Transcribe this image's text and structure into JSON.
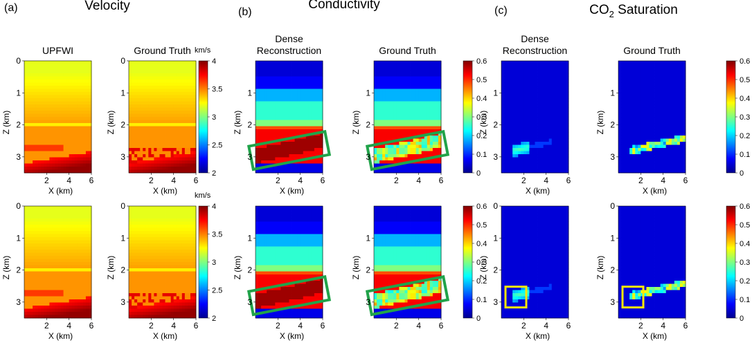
{
  "panels": [
    {
      "letter": "(a)",
      "title": "Velocity"
    },
    {
      "letter": "(b)",
      "title": "Conductivity"
    },
    {
      "letter": "(c)",
      "title_main": "CO",
      "title_sub": "2",
      "title_rest": " Saturation"
    }
  ],
  "colorbar_colors": [
    "#00008f",
    "#0000ff",
    "#0080ff",
    "#00ffff",
    "#80ff80",
    "#ffff00",
    "#ff8000",
    "#ff0000",
    "#800000"
  ],
  "highlight_colors": {
    "green": "#21a34a",
    "yellow": "#ffe600"
  },
  "chart_data": [
    {
      "type": "heatmap",
      "panel": "(a)",
      "row": 1,
      "title": "UPFWI",
      "xlabel": "X (km)",
      "ylabel": "Z (km)",
      "xticks": [
        "2",
        "4",
        "6"
      ],
      "yticks": [
        "0",
        "1",
        "2",
        "3"
      ],
      "xlim": [
        0,
        6
      ],
      "ylim": [
        0,
        3.5
      ],
      "colorbar_unit": "",
      "colorbar_ticks": [],
      "crange": [
        1.9,
        4
      ],
      "field": "velocity",
      "highlight": "none"
    },
    {
      "type": "heatmap",
      "panel": "(a)",
      "row": 1,
      "title": "Ground Truth",
      "xlabel": "X (km)",
      "ylabel": "Z (km)",
      "xticks": [
        "2",
        "4",
        "6"
      ],
      "yticks": [
        "0",
        "1",
        "2",
        "3"
      ],
      "xlim": [
        0,
        6
      ],
      "ylim": [
        0,
        3.5
      ],
      "colorbar_unit": "km/s",
      "colorbar_ticks": [
        "4",
        "3.5",
        "3",
        "2.5",
        "2"
      ],
      "crange": [
        1.9,
        4
      ],
      "field": "velocity_gt",
      "highlight": "none"
    },
    {
      "type": "heatmap",
      "panel": "(b)",
      "row": 1,
      "title": "Dense\nReconstruction",
      "xlabel": "X (km)",
      "ylabel": "Z (km)",
      "xticks": [
        "2",
        "4",
        "6"
      ],
      "yticks": [
        "1",
        "2",
        "3"
      ],
      "xlim": [
        0,
        6
      ],
      "ylim": [
        0,
        3.5
      ],
      "colorbar_unit": "",
      "colorbar_ticks": [],
      "crange": [
        0,
        0.6
      ],
      "field": "conductivity",
      "highlight": "green"
    },
    {
      "type": "heatmap",
      "panel": "(b)",
      "row": 1,
      "title": "Ground Truth",
      "xlabel": "",
      "ylabel": "Z (km)",
      "xticks": [
        "2",
        "4",
        "6"
      ],
      "yticks": [
        "1",
        "2",
        "3"
      ],
      "xlim": [
        0,
        6
      ],
      "ylim": [
        0,
        3.5
      ],
      "colorbar_unit": "",
      "colorbar_ticks": [
        "0.6",
        "0.5",
        "0.4",
        "0.3",
        "0.2",
        "0.1",
        "0"
      ],
      "crange": [
        0,
        0.6
      ],
      "field": "conductivity_gt",
      "highlight": "green"
    },
    {
      "type": "heatmap",
      "panel": "(c)",
      "row": 1,
      "title": "Dense\nReconstruction",
      "xlabel": "X (km)",
      "ylabel": "Z (km)",
      "xticks": [
        "2",
        "4",
        "6"
      ],
      "yticks": [
        "1",
        "2",
        "3"
      ],
      "xlim": [
        0,
        6
      ],
      "ylim": [
        0,
        3.5
      ],
      "colorbar_unit": "",
      "colorbar_ticks": [],
      "crange": [
        0,
        0.6
      ],
      "field": "saturation",
      "highlight": "none"
    },
    {
      "type": "heatmap",
      "panel": "(c)",
      "row": 1,
      "title": "Ground Truth",
      "xlabel": "X (km)",
      "ylabel": "Z (km)",
      "xticks": [
        "2",
        "4",
        "6"
      ],
      "yticks": [
        "1",
        "2",
        "3"
      ],
      "xlim": [
        0,
        6
      ],
      "ylim": [
        0,
        3.5
      ],
      "colorbar_unit": "",
      "colorbar_ticks": [
        "0.6",
        "0.5",
        "0.4",
        "0.3",
        "0.2",
        "0.1",
        "0"
      ],
      "crange": [
        0,
        0.6
      ],
      "field": "saturation_gt",
      "highlight": "none"
    },
    {
      "type": "heatmap",
      "panel": "(a)",
      "row": 2,
      "title": "",
      "xlabel": "X (km)",
      "ylabel": "Z (km)",
      "xticks": [
        "2",
        "4",
        "6"
      ],
      "yticks": [
        "0",
        "1",
        "2",
        "3"
      ],
      "xlim": [
        0,
        6
      ],
      "ylim": [
        0,
        3.5
      ],
      "colorbar_unit": "",
      "colorbar_ticks": [],
      "crange": [
        1.9,
        4
      ],
      "field": "velocity",
      "highlight": "none"
    },
    {
      "type": "heatmap",
      "panel": "(a)",
      "row": 2,
      "title": "",
      "xlabel": "X (km)",
      "ylabel": "Z (km)",
      "xticks": [
        "2",
        "4",
        "6"
      ],
      "yticks": [
        "0",
        "1",
        "2",
        "3"
      ],
      "xlim": [
        0,
        6
      ],
      "ylim": [
        0,
        3.5
      ],
      "colorbar_unit": "km/s",
      "colorbar_ticks": [
        "4",
        "3.5",
        "3",
        "2.5",
        "2"
      ],
      "crange": [
        1.9,
        4
      ],
      "field": "velocity_gt",
      "highlight": "none"
    },
    {
      "type": "heatmap",
      "panel": "(b)",
      "row": 2,
      "title": "",
      "xlabel": "X (km)",
      "ylabel": "Z (km)",
      "xticks": [
        "2",
        "4",
        "6"
      ],
      "yticks": [
        "1",
        "2",
        "3"
      ],
      "xlim": [
        0,
        6
      ],
      "ylim": [
        0,
        3.5
      ],
      "colorbar_unit": "",
      "colorbar_ticks": [],
      "crange": [
        0,
        0.6
      ],
      "field": "conductivity",
      "highlight": "green"
    },
    {
      "type": "heatmap",
      "panel": "(b)",
      "row": 2,
      "title": "",
      "xlabel": "",
      "ylabel": "Z (km)",
      "xticks": [
        "2",
        "4",
        "6"
      ],
      "yticks": [
        "1",
        "2",
        "3"
      ],
      "xlim": [
        0,
        6
      ],
      "ylim": [
        0,
        3.5
      ],
      "colorbar_unit": "",
      "colorbar_ticks": [
        "0.6",
        "0.5",
        "0.4",
        "0.3",
        "0.2",
        "0.1",
        "0"
      ],
      "crange": [
        0,
        0.6
      ],
      "field": "conductivity_gt",
      "highlight": "green"
    },
    {
      "type": "heatmap",
      "panel": "(c)",
      "row": 2,
      "title": "",
      "xlabel": "X (km)",
      "ylabel": "Z (km)",
      "xticks": [
        "2",
        "4",
        "6"
      ],
      "yticks": [
        "0",
        "1",
        "2",
        "3"
      ],
      "xlim": [
        0,
        6
      ],
      "ylim": [
        0,
        3.5
      ],
      "colorbar_unit": "",
      "colorbar_ticks": [],
      "crange": [
        0,
        0.6
      ],
      "field": "saturation",
      "highlight": "yellow"
    },
    {
      "type": "heatmap",
      "panel": "(c)",
      "row": 2,
      "title": "",
      "xlabel": "X (km)",
      "ylabel": "Z (km)",
      "xticks": [
        "2",
        "4",
        "6"
      ],
      "yticks": [
        "0",
        "1",
        "2",
        "3"
      ],
      "xlim": [
        0,
        6
      ],
      "ylim": [
        0,
        3.5
      ],
      "colorbar_unit": "",
      "colorbar_ticks": [
        "0.6",
        "0.5",
        "0.4",
        "0.3",
        "0.2",
        "0.1",
        "0"
      ],
      "crange": [
        0,
        0.6
      ],
      "field": "saturation_gt",
      "highlight": "yellow"
    }
  ]
}
